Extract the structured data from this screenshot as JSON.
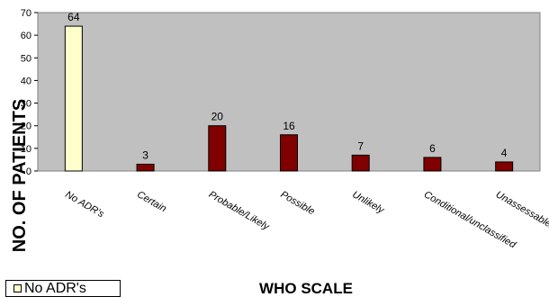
{
  "chart_data": {
    "type": "bar",
    "categories": [
      "No ADR's",
      "Certain",
      "Probable/Likely",
      "Possible",
      "Unlikely",
      "Conditional/unclassified",
      "Unassessable/unclassifiable"
    ],
    "values": [
      64,
      3,
      20,
      16,
      7,
      6,
      4
    ],
    "xlabel": "WHO SCALE",
    "ylabel": "NO. OF PATIENTS",
    "ylim": [
      0,
      70
    ],
    "yticks": [
      0,
      10,
      20,
      30,
      40,
      50,
      60,
      70
    ],
    "grid": false,
    "legend": {
      "position": "bottom-left",
      "entries": [
        "No ADR's"
      ]
    },
    "colors": {
      "first_bar": "#ffffcc",
      "other_bars": "#800000",
      "plot_area": "#c0c0c0"
    }
  }
}
